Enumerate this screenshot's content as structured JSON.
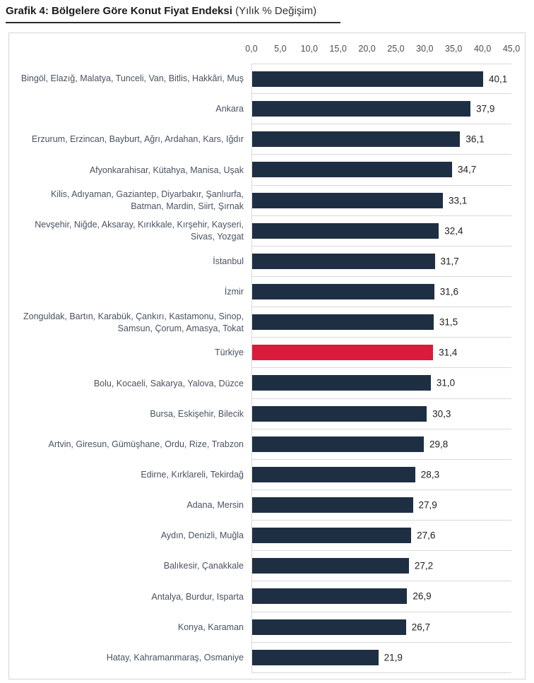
{
  "header": {
    "title_bold": "Grafik 4: Bölgelere Göre Konut Fiyat Endeksi",
    "title_normal": " (Yılık % Değişim)"
  },
  "chart_data": {
    "type": "bar",
    "orientation": "horizontal",
    "title": "Grafik 4: Bölgelere Göre Konut Fiyat Endeksi (Yılık % Değişim)",
    "xlabel": "",
    "ylabel": "",
    "xlim": [
      0,
      45
    ],
    "x_tick_step": 5,
    "x_tick_labels": [
      "0,0",
      "5,0",
      "10,0",
      "15,0",
      "20,0",
      "25,0",
      "30,0",
      "35,0",
      "40,0",
      "45,0"
    ],
    "grid": "row-separators",
    "legend": "none",
    "highlight_category": "Türkiye",
    "colors": {
      "bar": "#1e2f44",
      "highlight_bar": "#d91b3c",
      "gridline": "#d9d9d9",
      "category_label": "#4a5260",
      "value_label": "#1f1f1f"
    },
    "categories": [
      "Bingöl, Elazığ, Malatya, Tunceli, Van, Bitlis, Hakkâri, Muş",
      "Ankara",
      "Erzurum, Erzincan, Bayburt, Ağrı, Ardahan, Kars, Iğdır",
      "Afyonkarahisar, Kütahya, Manisa, Uşak",
      "Kilis, Adıyaman, Gaziantep, Diyarbakır, Şanlıurfa, Batman, Mardin, Siirt, Şırnak",
      "Nevşehir, Niğde, Aksaray, Kırıkkale, Kırşehir, Kayseri, Sivas, Yozgat",
      "İstanbul",
      "İzmir",
      "Zonguldak, Bartın, Karabük, Çankırı, Kastamonu, Sinop, Samsun, Çorum, Amasya, Tokat",
      "Türkiye",
      "Bolu, Kocaeli, Sakarya, Yalova, Düzce",
      "Bursa, Eskişehir, Bilecik",
      "Artvin, Giresun, Gümüşhane, Ordu, Rize, Trabzon",
      "Edirne, Kırklareli, Tekirdağ",
      "Adana, Mersin",
      "Aydın, Denizli, Muğla",
      "Balıkesir, Çanakkale",
      "Antalya, Burdur, Isparta",
      "Konya, Karaman",
      "Hatay, Kahramanmaraş, Osmaniye"
    ],
    "values": [
      40.1,
      37.9,
      36.1,
      34.7,
      33.1,
      32.4,
      31.7,
      31.6,
      31.5,
      31.4,
      31.0,
      30.3,
      29.8,
      28.3,
      27.9,
      27.6,
      27.2,
      26.9,
      26.7,
      21.9
    ],
    "value_labels": [
      "40,1",
      "37,9",
      "36,1",
      "34,7",
      "33,1",
      "32,4",
      "31,7",
      "31,6",
      "31,5",
      "31,4",
      "31,0",
      "30,3",
      "29,8",
      "28,3",
      "27,9",
      "27,6",
      "27,2",
      "26,9",
      "26,7",
      "21,9"
    ]
  }
}
